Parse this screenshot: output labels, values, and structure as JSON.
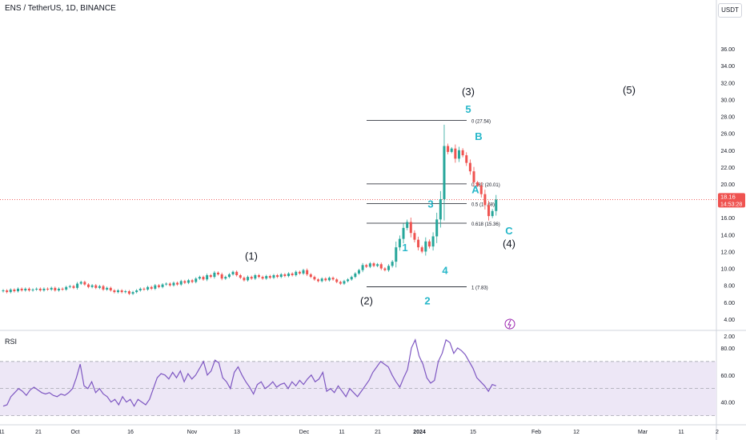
{
  "header": {
    "title": "ENS / TetherUS, 1D, BINANCE",
    "unit": "USDT"
  },
  "price_badge": {
    "price": "18.16",
    "countdown": "14:53:28"
  },
  "rsi_panel": {
    "label": "RSI"
  },
  "colors": {
    "up": "#26a69a",
    "up_fill": "#55b8a4",
    "down": "#ef5350",
    "rsi_line": "#7e57c2",
    "rsi_band": "#ede7f6",
    "wave_main": "#131722",
    "wave_sub": "#26b7c9",
    "fib": "#131722"
  },
  "chart_data": [
    {
      "type": "candlestick",
      "ylabel": "USDT",
      "ylim": [
        2,
        38
      ],
      "y_ticks": [
        "36.00",
        "34.00",
        "32.00",
        "30.00",
        "28.00",
        "26.00",
        "24.00",
        "22.00",
        "20.00",
        "18.00",
        "16.00",
        "14.00",
        "12.00",
        "10.00",
        "8.00",
        "6.00",
        "4.00",
        "2.00"
      ],
      "x_ticks": [
        "11",
        "21",
        "Oct",
        "16",
        "Nov",
        "13",
        "Dec",
        "11",
        "21",
        "2024",
        "15",
        "Feb",
        "12",
        "Mar",
        "11",
        "2"
      ],
      "last_price": 18.16,
      "candles_close": [
        7.4,
        7.2,
        7.5,
        7.3,
        7.6,
        7.4,
        7.6,
        7.4,
        7.5,
        7.6,
        7.4,
        7.6,
        7.5,
        7.7,
        7.4,
        7.6,
        7.5,
        7.8,
        7.9,
        7.7,
        8.2,
        8.4,
        8.1,
        7.8,
        8.0,
        7.7,
        7.9,
        7.5,
        7.7,
        7.4,
        7.2,
        7.4,
        7.2,
        7.3,
        7.0,
        7.2,
        7.4,
        7.6,
        7.5,
        7.8,
        7.6,
        8.0,
        7.8,
        8.1,
        8.2,
        8.0,
        8.3,
        8.1,
        8.5,
        8.3,
        8.6,
        8.4,
        8.8,
        9.0,
        8.7,
        9.2,
        9.0,
        9.5,
        9.3,
        8.8,
        9.0,
        9.3,
        9.6,
        9.2,
        8.9,
        8.6,
        9.0,
        8.8,
        9.2,
        9.0,
        8.8,
        9.1,
        8.9,
        9.2,
        9.0,
        9.3,
        9.1,
        9.4,
        9.2,
        9.6,
        9.4,
        9.8,
        9.3,
        9.0,
        8.7,
        8.5,
        8.8,
        8.6,
        8.9,
        8.7,
        8.4,
        8.2,
        8.5,
        8.7,
        9.0,
        9.4,
        9.8,
        10.4,
        10.2,
        10.6,
        10.3,
        10.5,
        10.0,
        9.8,
        10.3,
        10.8,
        12.5,
        13.5,
        14.8,
        15.5,
        14.2,
        13.4,
        12.5,
        12.0,
        13.2,
        12.6,
        13.8,
        15.8,
        18.2,
        24.5,
        23.8,
        24.2,
        23.0,
        24.0,
        23.4,
        22.5,
        21.5,
        20.2,
        19.8,
        18.8,
        17.5,
        16.2,
        16.8,
        18.16
      ],
      "wave_labels": [
        {
          "label": "(1)",
          "x_ticks_at": "Nov-Dec",
          "price": 11.5
        },
        {
          "label": "(2)",
          "price": 6.2
        },
        {
          "label": "(3)",
          "price": 31.0
        },
        {
          "label": "(4)",
          "price": 13.0
        },
        {
          "label": "(5)",
          "price": 31.2
        },
        {
          "label": "1",
          "price": 12.5
        },
        {
          "label": "2",
          "price": 6.2
        },
        {
          "label": "3",
          "price": 17.7
        },
        {
          "label": "4",
          "price": 9.8
        },
        {
          "label": "5",
          "price": 28.9
        },
        {
          "label": "A",
          "price": 19.4
        },
        {
          "label": "B",
          "price": 25.7
        },
        {
          "label": "C",
          "price": 14.5
        }
      ],
      "fib_levels": [
        {
          "label": "0 (27.54)",
          "price": 27.54
        },
        {
          "label": "0.382 (20.01)",
          "price": 20.01
        },
        {
          "label": "0.5 (17.68)",
          "price": 17.68
        },
        {
          "label": "0.618 (15.36)",
          "price": 15.36
        },
        {
          "label": "1 (7.83)",
          "price": 7.83
        }
      ]
    },
    {
      "type": "line",
      "title": "RSI",
      "ylim": [
        25,
        90
      ],
      "y_ticks": [
        "80.00",
        "60.00",
        "40.00"
      ],
      "bands": [
        30,
        50,
        70
      ],
      "values": [
        37,
        38,
        44,
        47,
        50,
        48,
        45,
        49,
        51,
        49,
        47,
        46,
        47,
        45,
        44,
        46,
        45,
        47,
        50,
        58,
        68,
        52,
        50,
        55,
        47,
        50,
        46,
        44,
        40,
        42,
        38,
        44,
        40,
        42,
        37,
        42,
        40,
        38,
        42,
        50,
        58,
        61,
        60,
        57,
        62,
        58,
        63,
        55,
        61,
        57,
        60,
        65,
        70,
        60,
        63,
        71,
        69,
        58,
        55,
        50,
        62,
        66,
        60,
        55,
        51,
        46,
        53,
        55,
        50,
        52,
        55,
        51,
        53,
        54,
        50,
        55,
        52,
        56,
        53,
        57,
        60,
        55,
        57,
        62,
        48,
        50,
        47,
        52,
        48,
        44,
        50,
        47,
        44,
        48,
        52,
        56,
        62,
        66,
        70,
        68,
        66,
        60,
        55,
        51,
        58,
        64,
        80,
        86,
        74,
        68,
        58,
        54,
        56,
        70,
        76,
        86,
        84,
        76,
        80,
        78,
        75,
        70,
        65,
        58,
        55,
        52,
        48,
        53,
        52
      ]
    }
  ]
}
